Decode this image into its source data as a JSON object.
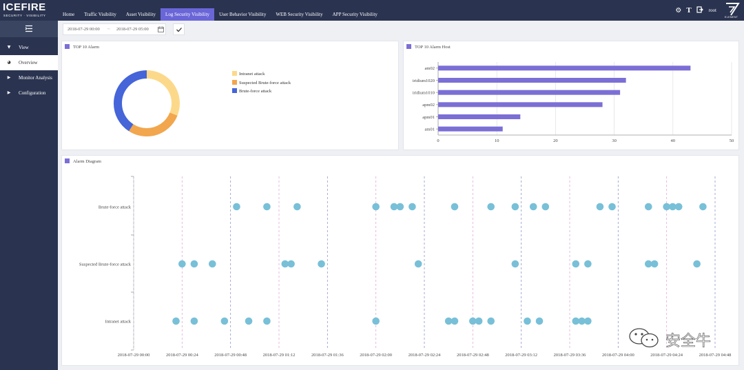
{
  "app": {
    "logo": "ICEFIRE",
    "logo_sub": "SECURITY · VISIBILITY",
    "user": "root",
    "brand_word": "ELEMENT"
  },
  "nav": {
    "tabs": [
      {
        "label": "Home",
        "active": false
      },
      {
        "label": "Traffic Visibility",
        "active": false
      },
      {
        "label": "Asset Visibility",
        "active": false
      },
      {
        "label": "Log Security Visibility",
        "active": true
      },
      {
        "label": "User Behavior Visibility",
        "active": false
      },
      {
        "label": "WEB Security Visibility",
        "active": false
      },
      {
        "label": "APP Security Visibility",
        "active": false
      }
    ]
  },
  "header_icons": [
    "gear-icon",
    "text-icon",
    "logout-icon"
  ],
  "sidebar": {
    "items": [
      {
        "label": "View",
        "icon": "caret-down-icon",
        "selected": false
      },
      {
        "label": "Overview",
        "icon": "pie-icon",
        "selected": true
      },
      {
        "label": "Monitor Analysis",
        "icon": "caret-right-icon",
        "selected": false
      },
      {
        "label": "Configuration",
        "icon": "caret-right-icon",
        "selected": false
      }
    ]
  },
  "filter": {
    "start": "2018-07-29 00:00",
    "separator": "~",
    "end": "2018-07-29 05:00"
  },
  "panels": {
    "top10_alarm": "TOP 10 Alarm",
    "top10_host": "TOP 10 Alarm Host",
    "diagram": "Alarm Diagram"
  },
  "colors": {
    "accent": "#6a66d8",
    "bar": "#7b6fd6",
    "scatter": "#78c0d8",
    "nav_bg": "#2a3450"
  },
  "watermark": {
    "text": "安全牛"
  },
  "chart_data": [
    {
      "type": "pie",
      "title": "TOP 10 Alarm",
      "donut": true,
      "legend_position": "right",
      "slices": [
        {
          "label": "Intranet attack",
          "value": 31,
          "color": "#fcd98a"
        },
        {
          "label": "Suspected Brute-force attack",
          "value": 28,
          "color": "#f2a64d"
        },
        {
          "label": "Brute-force attack",
          "value": 41,
          "color": "#4565d8"
        }
      ]
    },
    {
      "type": "bar",
      "orientation": "horizontal",
      "title": "TOP 10 Alarm Host",
      "categories": [
        "am02",
        "iridium1020",
        "iridium1010",
        "apm02",
        "apm01",
        "am01"
      ],
      "values": [
        43,
        32,
        31,
        28,
        14,
        11
      ],
      "xlim": [
        0,
        50
      ],
      "xticks": [
        0,
        10,
        20,
        30,
        40,
        50
      ],
      "grid": true
    },
    {
      "type": "scatter",
      "title": "Alarm Diagram",
      "categories": [
        "Brute-force attack",
        "Suspected Brute-force attack",
        "Intranet attack"
      ],
      "x_ticks": [
        "2018-07-29 00:00",
        "2018-07-29 00:24",
        "2018-07-29 00:48",
        "2018-07-29 01:12",
        "2018-07-29 01:36",
        "2018-07-29 02:00",
        "2018-07-29 02:24",
        "2018-07-29 02:48",
        "2018-07-29 03:12",
        "2018-07-29 03:36",
        "2018-07-29 04:00",
        "2018-07-29 04:24",
        "2018-07-29 04:48"
      ],
      "xlim": [
        "2018-07-29 00:00",
        "2018-07-29 04:48"
      ],
      "series": [
        {
          "category": "Brute-force attack",
          "x": [
            "00:51",
            "01:06",
            "01:21",
            "02:00",
            "02:09",
            "02:12",
            "02:18",
            "02:39",
            "02:57",
            "03:09",
            "03:18",
            "03:24",
            "03:51",
            "03:57",
            "04:15",
            "04:24",
            "04:27",
            "04:30",
            "04:42"
          ]
        },
        {
          "category": "Suspected Brute-force attack",
          "x": [
            "00:24",
            "00:30",
            "00:39",
            "01:15",
            "01:18",
            "01:33",
            "02:21",
            "03:09",
            "03:39",
            "03:45",
            "04:15",
            "04:18",
            "04:39"
          ]
        },
        {
          "category": "Intranet attack",
          "x": [
            "00:21",
            "00:30",
            "00:45",
            "00:57",
            "01:06",
            "02:00",
            "02:36",
            "02:39",
            "02:48",
            "02:51",
            "02:57",
            "03:15",
            "03:21",
            "03:39",
            "03:42",
            "03:45"
          ]
        }
      ]
    }
  ]
}
